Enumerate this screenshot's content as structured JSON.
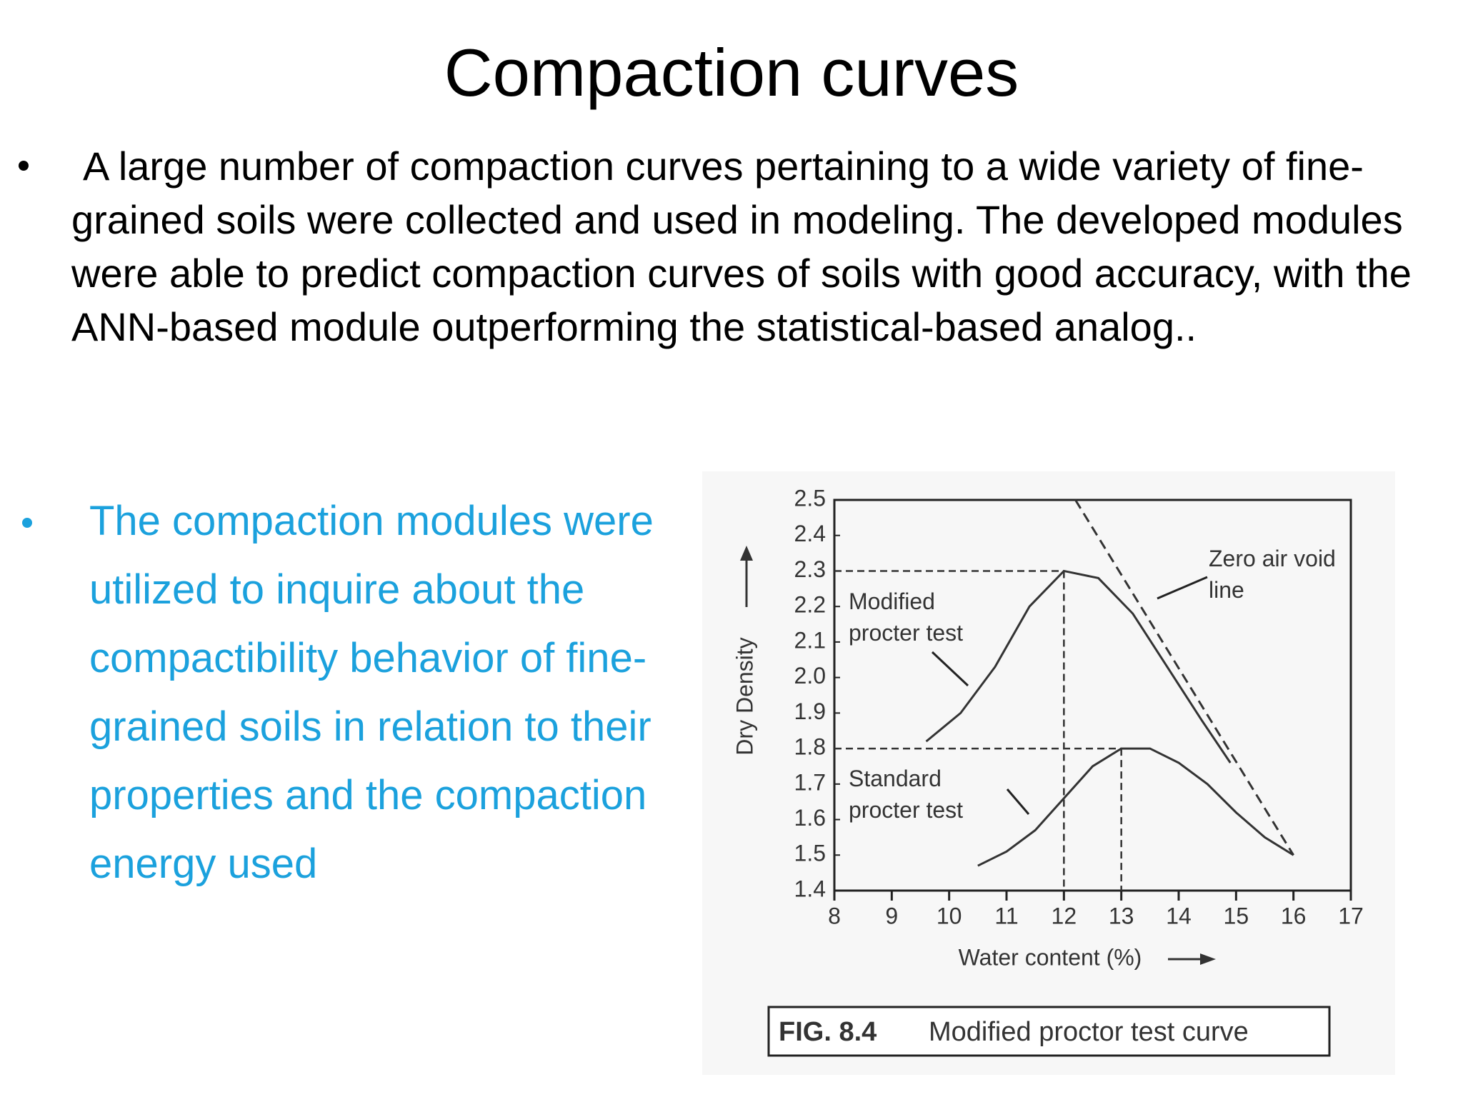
{
  "title": "Compaction curves",
  "bullets": [
    {
      "text": "A large number of compaction curves pertaining to a wide variety of fine-grained soils were collected and used in modeling. The developed modules were able to predict compaction curves of soils with good accuracy, with the ANN-based module outperforming the statistical-based analog.."
    },
    {
      "text": "The compaction modules were utilized to inquire about the compactibility behavior of fine-grained soils in relation to their properties and the compaction energy used"
    }
  ],
  "chart_data": {
    "type": "line",
    "x_label": "Water content (%)",
    "y_label": "Dry Density",
    "xlim": [
      8,
      17
    ],
    "ylim": [
      1.4,
      2.5
    ],
    "xticks": [
      8,
      9,
      10,
      11,
      12,
      13,
      14,
      15,
      16,
      17
    ],
    "yticks": [
      2.5,
      2.4,
      2.3,
      2.2,
      2.1,
      {
        "value": 2,
        "label": "2.0"
      },
      1.9,
      1.8,
      1.7,
      1.6,
      1.5,
      1.4
    ],
    "series": [
      {
        "name": "Modified procter test",
        "color": "#333333",
        "dashed": false,
        "x": [
          9.6,
          10.2,
          10.8,
          11.4,
          12,
          12.6,
          13.2,
          13.8,
          14.4,
          14.9
        ],
        "values": [
          1.82,
          1.9,
          2.03,
          2.2,
          2.3,
          2.28,
          2.18,
          2.03,
          1.88,
          1.76
        ]
      },
      {
        "name": "Standard procter test",
        "color": "#333333",
        "dashed": false,
        "x": [
          10.5,
          11,
          11.5,
          12,
          12.5,
          13,
          13.5,
          14,
          14.5,
          15,
          15.5,
          16
        ],
        "values": [
          1.47,
          1.51,
          1.57,
          1.66,
          1.75,
          1.8,
          1.8,
          1.76,
          1.7,
          1.62,
          1.55,
          1.5
        ]
      },
      {
        "name": "Zero air void line",
        "color": "#333333",
        "dashed": true,
        "x": [
          12.2,
          16
        ],
        "values": [
          2.5,
          1.5
        ]
      }
    ]
  },
  "caption": {
    "label": "FIG. 8.4",
    "text": "Modified proctor test curve"
  }
}
